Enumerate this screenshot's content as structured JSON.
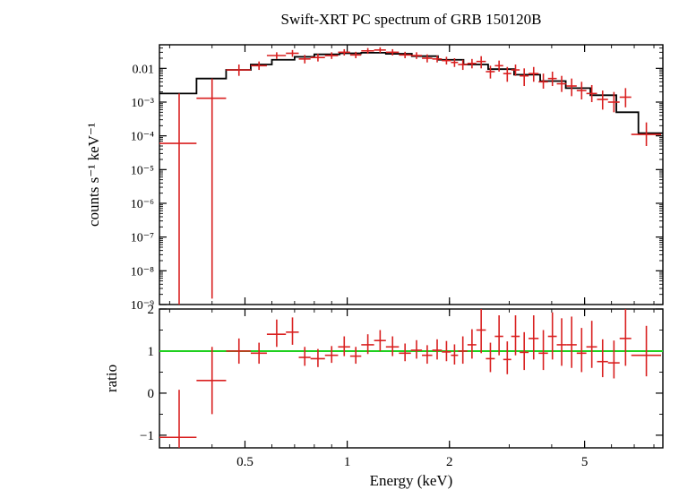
{
  "title": "Swift-XRT PC spectrum of GRB 150120B",
  "title_fontsize": 17,
  "background_color": "#ffffff",
  "data_color": "#d92020",
  "model_color": "#000000",
  "ratio_line_color": "#20d020",
  "axis_color": "#000000",
  "x_axis": {
    "label": "Energy (keV)",
    "scale": "log",
    "min": 0.28,
    "max": 8.5,
    "ticks_major": [
      0.5,
      1,
      2,
      5
    ],
    "label_fontsize": 17,
    "tick_fontsize": 15
  },
  "top_panel": {
    "ylabel": "counts s⁻¹ keV⁻¹",
    "scale": "log",
    "ymin": 1e-09,
    "ymax": 0.05,
    "ticks_major": [
      1e-09,
      1e-08,
      1e-07,
      1e-06,
      1e-05,
      0.0001,
      0.001,
      0.01
    ],
    "tick_labels": [
      "10⁻⁹",
      "10⁻⁸",
      "10⁻⁷",
      "10⁻⁶",
      "10⁻⁵",
      "10⁻⁴",
      "10⁻³",
      "0.01"
    ],
    "label_fontsize": 17,
    "tick_fontsize": 14,
    "model_steps": [
      [
        0.28,
        0.0018
      ],
      [
        0.36,
        0.0018
      ],
      [
        0.36,
        0.005
      ],
      [
        0.44,
        0.005
      ],
      [
        0.44,
        0.009
      ],
      [
        0.52,
        0.009
      ],
      [
        0.52,
        0.013
      ],
      [
        0.6,
        0.013
      ],
      [
        0.6,
        0.018
      ],
      [
        0.7,
        0.018
      ],
      [
        0.7,
        0.022
      ],
      [
        0.8,
        0.022
      ],
      [
        0.8,
        0.026
      ],
      [
        0.95,
        0.026
      ],
      [
        0.95,
        0.028
      ],
      [
        1.1,
        0.028
      ],
      [
        1.1,
        0.029
      ],
      [
        1.3,
        0.029
      ],
      [
        1.3,
        0.027
      ],
      [
        1.55,
        0.027
      ],
      [
        1.55,
        0.023
      ],
      [
        1.85,
        0.023
      ],
      [
        1.85,
        0.018
      ],
      [
        2.2,
        0.018
      ],
      [
        2.2,
        0.013
      ],
      [
        2.6,
        0.013
      ],
      [
        2.6,
        0.0095
      ],
      [
        3.1,
        0.0095
      ],
      [
        3.1,
        0.0065
      ],
      [
        3.7,
        0.0065
      ],
      [
        3.7,
        0.0042
      ],
      [
        4.4,
        0.0042
      ],
      [
        4.4,
        0.0026
      ],
      [
        5.2,
        0.0026
      ],
      [
        5.2,
        0.0016
      ],
      [
        6.2,
        0.0016
      ],
      [
        6.2,
        0.0005
      ],
      [
        7.2,
        0.0005
      ],
      [
        7.2,
        0.00012
      ],
      [
        8.5,
        0.00012
      ]
    ],
    "data_points": [
      {
        "x": 0.32,
        "xlo": 0.28,
        "xhi": 0.36,
        "y": 6e-05,
        "ylo": 1e-09,
        "yhi": 0.0018
      },
      {
        "x": 0.4,
        "xlo": 0.36,
        "xhi": 0.44,
        "y": 0.0013,
        "ylo": 1.5e-09,
        "yhi": 0.005
      },
      {
        "x": 0.48,
        "xlo": 0.44,
        "xhi": 0.52,
        "y": 0.009,
        "ylo": 0.006,
        "yhi": 0.013
      },
      {
        "x": 0.55,
        "xlo": 0.52,
        "xhi": 0.58,
        "y": 0.012,
        "ylo": 0.009,
        "yhi": 0.016
      },
      {
        "x": 0.62,
        "xlo": 0.58,
        "xhi": 0.66,
        "y": 0.024,
        "ylo": 0.019,
        "yhi": 0.03
      },
      {
        "x": 0.69,
        "xlo": 0.66,
        "xhi": 0.72,
        "y": 0.028,
        "ylo": 0.022,
        "yhi": 0.035
      },
      {
        "x": 0.75,
        "xlo": 0.72,
        "xhi": 0.78,
        "y": 0.019,
        "ylo": 0.014,
        "yhi": 0.025
      },
      {
        "x": 0.82,
        "xlo": 0.78,
        "xhi": 0.86,
        "y": 0.021,
        "ylo": 0.016,
        "yhi": 0.027
      },
      {
        "x": 0.9,
        "xlo": 0.86,
        "xhi": 0.94,
        "y": 0.024,
        "ylo": 0.019,
        "yhi": 0.03
      },
      {
        "x": 0.98,
        "xlo": 0.94,
        "xhi": 1.02,
        "y": 0.03,
        "ylo": 0.024,
        "yhi": 0.037
      },
      {
        "x": 1.06,
        "xlo": 1.02,
        "xhi": 1.1,
        "y": 0.025,
        "ylo": 0.02,
        "yhi": 0.031
      },
      {
        "x": 1.15,
        "xlo": 1.1,
        "xhi": 1.2,
        "y": 0.033,
        "ylo": 0.027,
        "yhi": 0.04
      },
      {
        "x": 1.25,
        "xlo": 1.2,
        "xhi": 1.3,
        "y": 0.035,
        "ylo": 0.029,
        "yhi": 0.042
      },
      {
        "x": 1.36,
        "xlo": 1.3,
        "xhi": 1.42,
        "y": 0.03,
        "ylo": 0.024,
        "yhi": 0.037
      },
      {
        "x": 1.48,
        "xlo": 1.42,
        "xhi": 1.54,
        "y": 0.025,
        "ylo": 0.02,
        "yhi": 0.031
      },
      {
        "x": 1.6,
        "xlo": 1.54,
        "xhi": 1.66,
        "y": 0.024,
        "ylo": 0.019,
        "yhi": 0.03
      },
      {
        "x": 1.72,
        "xlo": 1.66,
        "xhi": 1.78,
        "y": 0.02,
        "ylo": 0.015,
        "yhi": 0.026
      },
      {
        "x": 1.84,
        "xlo": 1.78,
        "xhi": 1.9,
        "y": 0.019,
        "ylo": 0.015,
        "yhi": 0.024
      },
      {
        "x": 1.96,
        "xlo": 1.9,
        "xhi": 2.02,
        "y": 0.017,
        "ylo": 0.013,
        "yhi": 0.022
      },
      {
        "x": 2.07,
        "xlo": 2.02,
        "xhi": 2.12,
        "y": 0.015,
        "ylo": 0.011,
        "yhi": 0.02
      },
      {
        "x": 2.19,
        "xlo": 2.12,
        "xhi": 2.26,
        "y": 0.013,
        "ylo": 0.009,
        "yhi": 0.018
      },
      {
        "x": 2.33,
        "xlo": 2.26,
        "xhi": 2.4,
        "y": 0.014,
        "ylo": 0.01,
        "yhi": 0.019
      },
      {
        "x": 2.48,
        "xlo": 2.4,
        "xhi": 2.56,
        "y": 0.016,
        "ylo": 0.01,
        "yhi": 0.023
      },
      {
        "x": 2.64,
        "xlo": 2.56,
        "xhi": 2.72,
        "y": 0.008,
        "ylo": 0.005,
        "yhi": 0.012
      },
      {
        "x": 2.8,
        "xlo": 2.72,
        "xhi": 2.88,
        "y": 0.012,
        "ylo": 0.008,
        "yhi": 0.017
      },
      {
        "x": 2.96,
        "xlo": 2.88,
        "xhi": 3.04,
        "y": 0.007,
        "ylo": 0.004,
        "yhi": 0.011
      },
      {
        "x": 3.13,
        "xlo": 3.04,
        "xhi": 3.22,
        "y": 0.009,
        "ylo": 0.006,
        "yhi": 0.013
      },
      {
        "x": 3.32,
        "xlo": 3.22,
        "xhi": 3.42,
        "y": 0.006,
        "ylo": 0.003,
        "yhi": 0.01
      },
      {
        "x": 3.54,
        "xlo": 3.42,
        "xhi": 3.66,
        "y": 0.007,
        "ylo": 0.004,
        "yhi": 0.011
      },
      {
        "x": 3.78,
        "xlo": 3.66,
        "xhi": 3.9,
        "y": 0.004,
        "ylo": 0.0025,
        "yhi": 0.007
      },
      {
        "x": 4.02,
        "xlo": 3.9,
        "xhi": 4.14,
        "y": 0.005,
        "ylo": 0.003,
        "yhi": 0.008
      },
      {
        "x": 4.28,
        "xlo": 4.14,
        "xhi": 4.42,
        "y": 0.0035,
        "ylo": 0.002,
        "yhi": 0.006
      },
      {
        "x": 4.58,
        "xlo": 4.42,
        "xhi": 4.74,
        "y": 0.003,
        "ylo": 0.0015,
        "yhi": 0.005
      },
      {
        "x": 4.9,
        "xlo": 4.74,
        "xhi": 5.06,
        "y": 0.0022,
        "ylo": 0.0012,
        "yhi": 0.004
      },
      {
        "x": 5.25,
        "xlo": 5.06,
        "xhi": 5.44,
        "y": 0.0018,
        "ylo": 0.001,
        "yhi": 0.0032
      },
      {
        "x": 5.65,
        "xlo": 5.44,
        "xhi": 5.86,
        "y": 0.0012,
        "ylo": 0.0006,
        "yhi": 0.0022
      },
      {
        "x": 6.1,
        "xlo": 5.86,
        "xhi": 6.34,
        "y": 0.001,
        "ylo": 0.0005,
        "yhi": 0.002
      },
      {
        "x": 6.6,
        "xlo": 6.34,
        "xhi": 6.86,
        "y": 0.0014,
        "ylo": 0.0007,
        "yhi": 0.0026
      },
      {
        "x": 7.6,
        "xlo": 6.86,
        "xhi": 8.4,
        "y": 0.00011,
        "ylo": 5e-05,
        "yhi": 0.00025
      }
    ]
  },
  "bottom_panel": {
    "ylabel": "ratio",
    "scale": "linear",
    "ymin": -1.3,
    "ymax": 2.0,
    "ticks_major": [
      -1,
      0,
      1,
      2
    ],
    "tick_labels": [
      "−1",
      "0",
      "1",
      "2"
    ],
    "label_fontsize": 17,
    "tick_fontsize": 15,
    "ref_line_y": 1.0,
    "data_points": [
      {
        "x": 0.32,
        "xlo": 0.28,
        "xhi": 0.36,
        "y": -1.05,
        "ylo": -1.3,
        "yhi": 0.08
      },
      {
        "x": 0.4,
        "xlo": 0.36,
        "xhi": 0.44,
        "y": 0.3,
        "ylo": -0.5,
        "yhi": 1.1
      },
      {
        "x": 0.48,
        "xlo": 0.44,
        "xhi": 0.52,
        "y": 1.0,
        "ylo": 0.7,
        "yhi": 1.3
      },
      {
        "x": 0.55,
        "xlo": 0.52,
        "xhi": 0.58,
        "y": 0.95,
        "ylo": 0.7,
        "yhi": 1.2
      },
      {
        "x": 0.62,
        "xlo": 0.58,
        "xhi": 0.66,
        "y": 1.4,
        "ylo": 1.1,
        "yhi": 1.75
      },
      {
        "x": 0.69,
        "xlo": 0.66,
        "xhi": 0.72,
        "y": 1.45,
        "ylo": 1.15,
        "yhi": 1.8
      },
      {
        "x": 0.75,
        "xlo": 0.72,
        "xhi": 0.78,
        "y": 0.85,
        "ylo": 0.65,
        "yhi": 1.1
      },
      {
        "x": 0.82,
        "xlo": 0.78,
        "xhi": 0.86,
        "y": 0.82,
        "ylo": 0.62,
        "yhi": 1.05
      },
      {
        "x": 0.9,
        "xlo": 0.86,
        "xhi": 0.94,
        "y": 0.9,
        "ylo": 0.72,
        "yhi": 1.12
      },
      {
        "x": 0.98,
        "xlo": 0.94,
        "xhi": 1.02,
        "y": 1.1,
        "ylo": 0.88,
        "yhi": 1.35
      },
      {
        "x": 1.06,
        "xlo": 1.02,
        "xhi": 1.1,
        "y": 0.88,
        "ylo": 0.7,
        "yhi": 1.1
      },
      {
        "x": 1.15,
        "xlo": 1.1,
        "xhi": 1.2,
        "y": 1.15,
        "ylo": 0.93,
        "yhi": 1.4
      },
      {
        "x": 1.25,
        "xlo": 1.2,
        "xhi": 1.3,
        "y": 1.25,
        "ylo": 1.0,
        "yhi": 1.5
      },
      {
        "x": 1.36,
        "xlo": 1.3,
        "xhi": 1.42,
        "y": 1.1,
        "ylo": 0.88,
        "yhi": 1.35
      },
      {
        "x": 1.48,
        "xlo": 1.42,
        "xhi": 1.54,
        "y": 0.95,
        "ylo": 0.76,
        "yhi": 1.18
      },
      {
        "x": 1.6,
        "xlo": 1.54,
        "xhi": 1.66,
        "y": 1.02,
        "ylo": 0.82,
        "yhi": 1.26
      },
      {
        "x": 1.72,
        "xlo": 1.66,
        "xhi": 1.78,
        "y": 0.9,
        "ylo": 0.7,
        "yhi": 1.14
      },
      {
        "x": 1.84,
        "xlo": 1.78,
        "xhi": 1.9,
        "y": 1.02,
        "ylo": 0.8,
        "yhi": 1.28
      },
      {
        "x": 1.96,
        "xlo": 1.9,
        "xhi": 2.02,
        "y": 0.98,
        "ylo": 0.76,
        "yhi": 1.24
      },
      {
        "x": 2.07,
        "xlo": 2.02,
        "xhi": 2.12,
        "y": 0.9,
        "ylo": 0.68,
        "yhi": 1.16
      },
      {
        "x": 2.19,
        "xlo": 2.12,
        "xhi": 2.26,
        "y": 1.0,
        "ylo": 0.7,
        "yhi": 1.35
      },
      {
        "x": 2.33,
        "xlo": 2.26,
        "xhi": 2.4,
        "y": 1.15,
        "ylo": 0.82,
        "yhi": 1.52
      },
      {
        "x": 2.48,
        "xlo": 2.4,
        "xhi": 2.56,
        "y": 1.5,
        "ylo": 0.95,
        "yhi": 2.0
      },
      {
        "x": 2.64,
        "xlo": 2.56,
        "xhi": 2.72,
        "y": 0.82,
        "ylo": 0.5,
        "yhi": 1.2
      },
      {
        "x": 2.8,
        "xlo": 2.72,
        "xhi": 2.88,
        "y": 1.35,
        "ylo": 0.9,
        "yhi": 1.85
      },
      {
        "x": 2.96,
        "xlo": 2.88,
        "xhi": 3.04,
        "y": 0.8,
        "ylo": 0.45,
        "yhi": 1.23
      },
      {
        "x": 3.13,
        "xlo": 3.04,
        "xhi": 3.22,
        "y": 1.35,
        "ylo": 0.9,
        "yhi": 1.85
      },
      {
        "x": 3.32,
        "xlo": 3.22,
        "xhi": 3.42,
        "y": 0.97,
        "ylo": 0.55,
        "yhi": 1.45
      },
      {
        "x": 3.54,
        "xlo": 3.42,
        "xhi": 3.66,
        "y": 1.3,
        "ylo": 0.8,
        "yhi": 1.85
      },
      {
        "x": 3.78,
        "xlo": 3.66,
        "xhi": 3.9,
        "y": 0.95,
        "ylo": 0.55,
        "yhi": 1.5
      },
      {
        "x": 4.02,
        "xlo": 3.9,
        "xhi": 4.14,
        "y": 1.35,
        "ylo": 0.8,
        "yhi": 1.92
      },
      {
        "x": 4.28,
        "xlo": 4.14,
        "xhi": 4.42,
        "y": 1.15,
        "ylo": 0.65,
        "yhi": 1.78
      },
      {
        "x": 4.58,
        "xlo": 4.42,
        "xhi": 4.74,
        "y": 1.15,
        "ylo": 0.6,
        "yhi": 1.82
      },
      {
        "x": 4.9,
        "xlo": 4.74,
        "xhi": 5.06,
        "y": 0.95,
        "ylo": 0.5,
        "yhi": 1.55
      },
      {
        "x": 5.25,
        "xlo": 5.06,
        "xhi": 5.44,
        "y": 1.1,
        "ylo": 0.6,
        "yhi": 1.72
      },
      {
        "x": 5.65,
        "xlo": 5.44,
        "xhi": 5.86,
        "y": 0.75,
        "ylo": 0.38,
        "yhi": 1.28
      },
      {
        "x": 6.1,
        "xlo": 5.86,
        "xhi": 6.34,
        "y": 0.72,
        "ylo": 0.35,
        "yhi": 1.25
      },
      {
        "x": 6.6,
        "xlo": 6.34,
        "xhi": 6.86,
        "y": 1.3,
        "ylo": 0.65,
        "yhi": 2.0
      },
      {
        "x": 7.6,
        "xlo": 6.86,
        "xhi": 8.4,
        "y": 0.9,
        "ylo": 0.4,
        "yhi": 1.6
      }
    ]
  }
}
